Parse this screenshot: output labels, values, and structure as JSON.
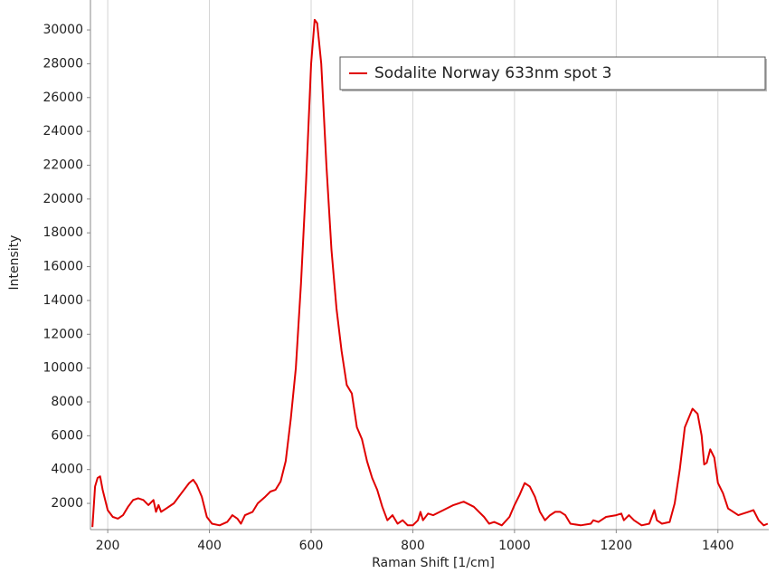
{
  "chart_data": {
    "type": "line",
    "x_label": "Raman Shift [1/cm]",
    "y_label": "Intensity",
    "xlim": [
      166,
      1500
    ],
    "ylim": [
      450,
      31770
    ],
    "xticks": [
      200,
      400,
      600,
      800,
      1000,
      1200,
      1400
    ],
    "yticks": [
      2000,
      4000,
      6000,
      8000,
      10000,
      12000,
      14000,
      16000,
      18000,
      20000,
      22000,
      24000,
      26000,
      28000,
      30000
    ],
    "grid": true,
    "legend": "upper right",
    "x": [
      170,
      175,
      180,
      185,
      190,
      200,
      210,
      220,
      230,
      240,
      250,
      260,
      270,
      280,
      290,
      295,
      300,
      305,
      315,
      330,
      345,
      360,
      368,
      375,
      385,
      395,
      405,
      420,
      435,
      445,
      455,
      462,
      470,
      485,
      495,
      510,
      520,
      530,
      540,
      550,
      560,
      570,
      580,
      590,
      600,
      607,
      612,
      620,
      630,
      640,
      650,
      660,
      670,
      680,
      690,
      700,
      710,
      720,
      730,
      740,
      750,
      760,
      770,
      780,
      790,
      800,
      810,
      815,
      820,
      830,
      840,
      860,
      880,
      900,
      920,
      940,
      950,
      960,
      975,
      990,
      1000,
      1010,
      1020,
      1030,
      1040,
      1050,
      1060,
      1070,
      1080,
      1090,
      1100,
      1110,
      1130,
      1150,
      1155,
      1165,
      1180,
      1200,
      1210,
      1215,
      1225,
      1235,
      1250,
      1265,
      1275,
      1280,
      1290,
      1305,
      1315,
      1325,
      1335,
      1350,
      1360,
      1368,
      1373,
      1378,
      1385,
      1393,
      1400,
      1410,
      1420,
      1440,
      1460,
      1470,
      1480,
      1490,
      1498
    ],
    "series": [
      {
        "name": "Sodalite Norway 633nm spot 3",
        "color": "#e00000",
        "values": [
          600,
          3000,
          3500,
          3600,
          2800,
          1600,
          1200,
          1100,
          1300,
          1800,
          2200,
          2300,
          2200,
          1900,
          2200,
          1500,
          1900,
          1500,
          1700,
          2000,
          2600,
          3200,
          3400,
          3100,
          2400,
          1200,
          800,
          700,
          900,
          1300,
          1100,
          800,
          1300,
          1500,
          2000,
          2400,
          2700,
          2800,
          3300,
          4500,
          7000,
          10000,
          15000,
          21000,
          28000,
          30600,
          30400,
          28000,
          22000,
          17000,
          13500,
          11000,
          9000,
          8500,
          6500,
          5800,
          4500,
          3500,
          2800,
          1800,
          1000,
          1300,
          800,
          1000,
          700,
          700,
          1000,
          1500,
          1000,
          1400,
          1300,
          1600,
          1900,
          2100,
          1800,
          1200,
          800,
          900,
          700,
          1200,
          1900,
          2500,
          3200,
          3000,
          2400,
          1500,
          1000,
          1300,
          1500,
          1500,
          1300,
          800,
          700,
          800,
          1000,
          900,
          1200,
          1300,
          1400,
          1000,
          1300,
          1000,
          700,
          800,
          1600,
          1000,
          800,
          900,
          2000,
          4000,
          6500,
          7600,
          7300,
          6000,
          4300,
          4400,
          5200,
          4700,
          3200,
          2600,
          1700,
          1300,
          1500,
          1600,
          1000,
          700,
          800
        ]
      }
    ]
  }
}
